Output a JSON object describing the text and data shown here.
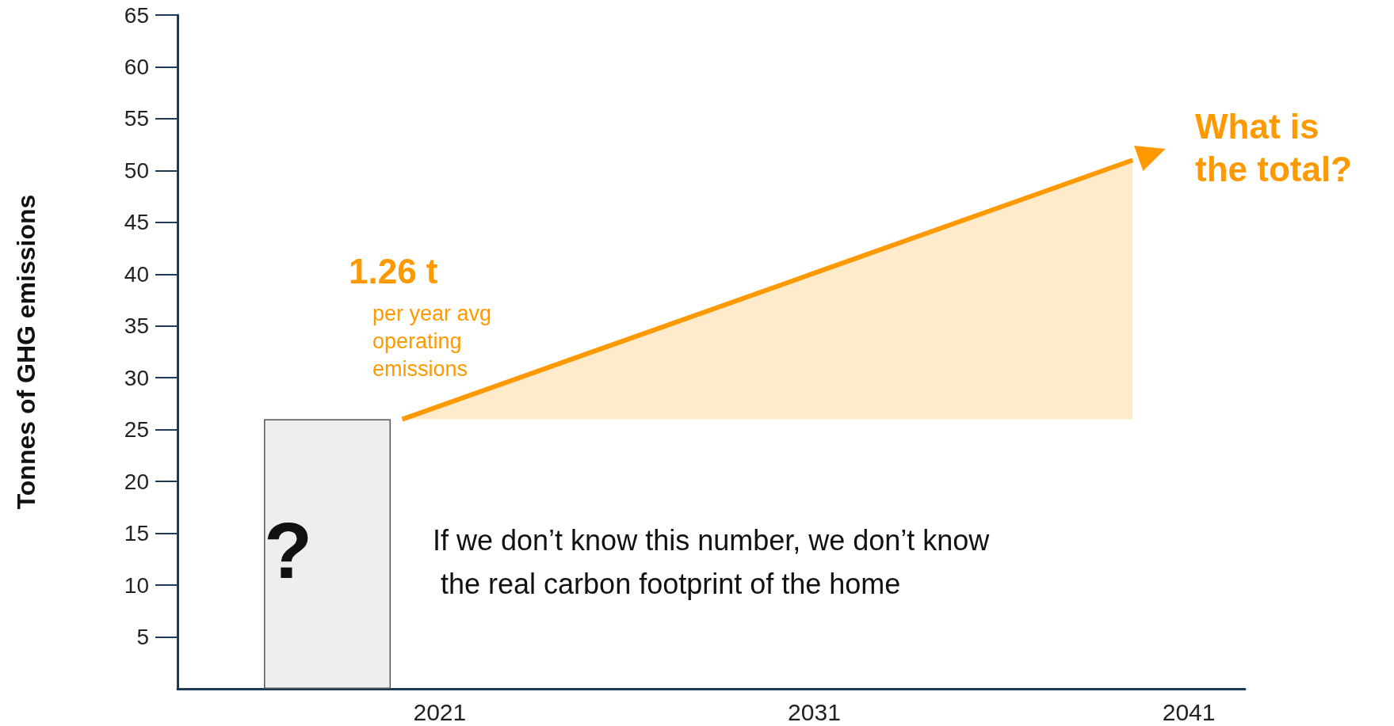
{
  "chart_data": {
    "type": "bar",
    "ylabel": "Tonnes of GHG emissions",
    "xlim": [
      2014,
      2042.5
    ],
    "xticks": [
      2021,
      2031,
      2041
    ],
    "ylim": [
      0,
      65
    ],
    "yticks": [
      5,
      10,
      15,
      20,
      25,
      30,
      35,
      40,
      45,
      50,
      55,
      60,
      65
    ],
    "grid": false,
    "series": [
      {
        "x": [
          2018
        ],
        "values": [
          26
        ],
        "color": "#eeeeee"
      },
      {
        "type": "line",
        "x": [
          2020,
          2039.5
        ],
        "values": [
          26,
          51
        ],
        "lower": [
          26,
          26
        ],
        "upper": [
          26,
          51
        ],
        "color": "#ff9900"
      }
    ],
    "annotations": [
      "1.26 t",
      "per year avg operating emissions",
      "What is the total?",
      "If we don’t know this number, we don’t know the real carbon footprint of the home",
      "?"
    ]
  }
}
